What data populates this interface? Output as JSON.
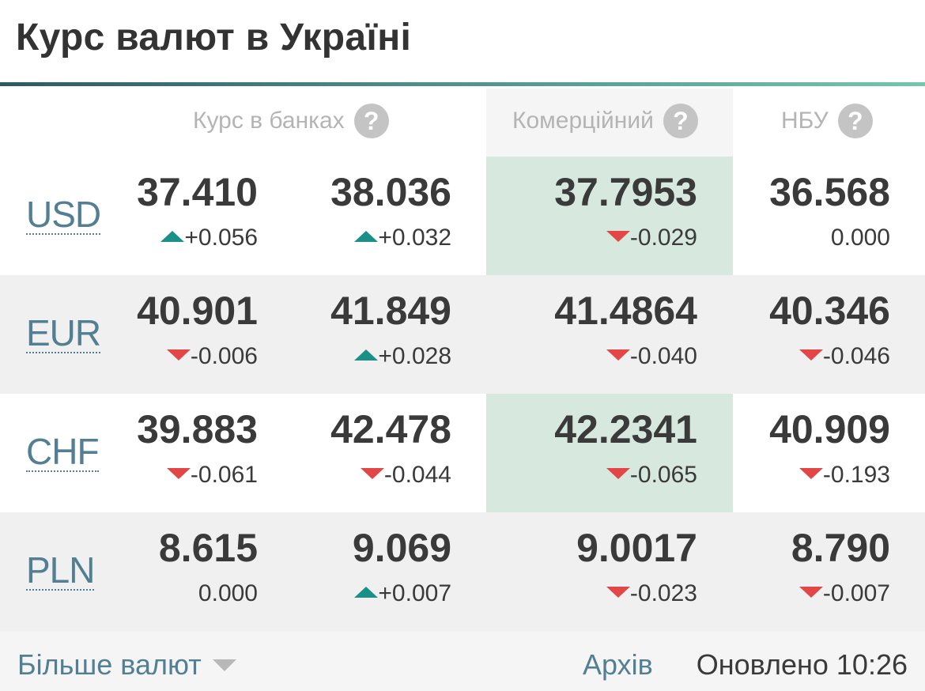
{
  "title": "Курс валют в Україні",
  "headers": {
    "banks": "Курс в банках",
    "commercial": "Комерційний",
    "nbu": "НБУ",
    "help": "?"
  },
  "rows": [
    {
      "code": "USD",
      "banks_buy": {
        "value": "37.410",
        "change": "+0.056",
        "dir": "up"
      },
      "banks_sell": {
        "value": "38.036",
        "change": "+0.032",
        "dir": "up"
      },
      "commercial": {
        "value": "37.7953",
        "change": "-0.029",
        "dir": "down"
      },
      "nbu": {
        "value": "36.568",
        "change": "0.000",
        "dir": "none"
      }
    },
    {
      "code": "EUR",
      "banks_buy": {
        "value": "40.901",
        "change": "-0.006",
        "dir": "down"
      },
      "banks_sell": {
        "value": "41.849",
        "change": "+0.028",
        "dir": "up"
      },
      "commercial": {
        "value": "41.4864",
        "change": "-0.040",
        "dir": "down"
      },
      "nbu": {
        "value": "40.346",
        "change": "-0.046",
        "dir": "down"
      }
    },
    {
      "code": "CHF",
      "banks_buy": {
        "value": "39.883",
        "change": "-0.061",
        "dir": "down"
      },
      "banks_sell": {
        "value": "42.478",
        "change": "-0.044",
        "dir": "down"
      },
      "commercial": {
        "value": "42.2341",
        "change": "-0.065",
        "dir": "down"
      },
      "nbu": {
        "value": "40.909",
        "change": "-0.193",
        "dir": "down"
      }
    },
    {
      "code": "PLN",
      "banks_buy": {
        "value": "8.615",
        "change": "0.000",
        "dir": "none"
      },
      "banks_sell": {
        "value": "9.069",
        "change": "+0.007",
        "dir": "up"
      },
      "commercial": {
        "value": "9.0017",
        "change": "-0.023",
        "dir": "down"
      },
      "nbu": {
        "value": "8.790",
        "change": "-0.007",
        "dir": "down"
      }
    }
  ],
  "footer": {
    "more": "Більше валют",
    "archive": "Архів",
    "updated": "Оновлено 10:26"
  },
  "icons": {
    "help": "question-circle-icon",
    "up": "triangle-up-icon",
    "down": "triangle-down-icon",
    "more": "caret-down-icon"
  },
  "colors": {
    "up": "#1a9088",
    "down": "#e24646",
    "link": "#527f94",
    "commercial_bg": "#d7e8df",
    "row_alt": "#f0f0f0"
  }
}
